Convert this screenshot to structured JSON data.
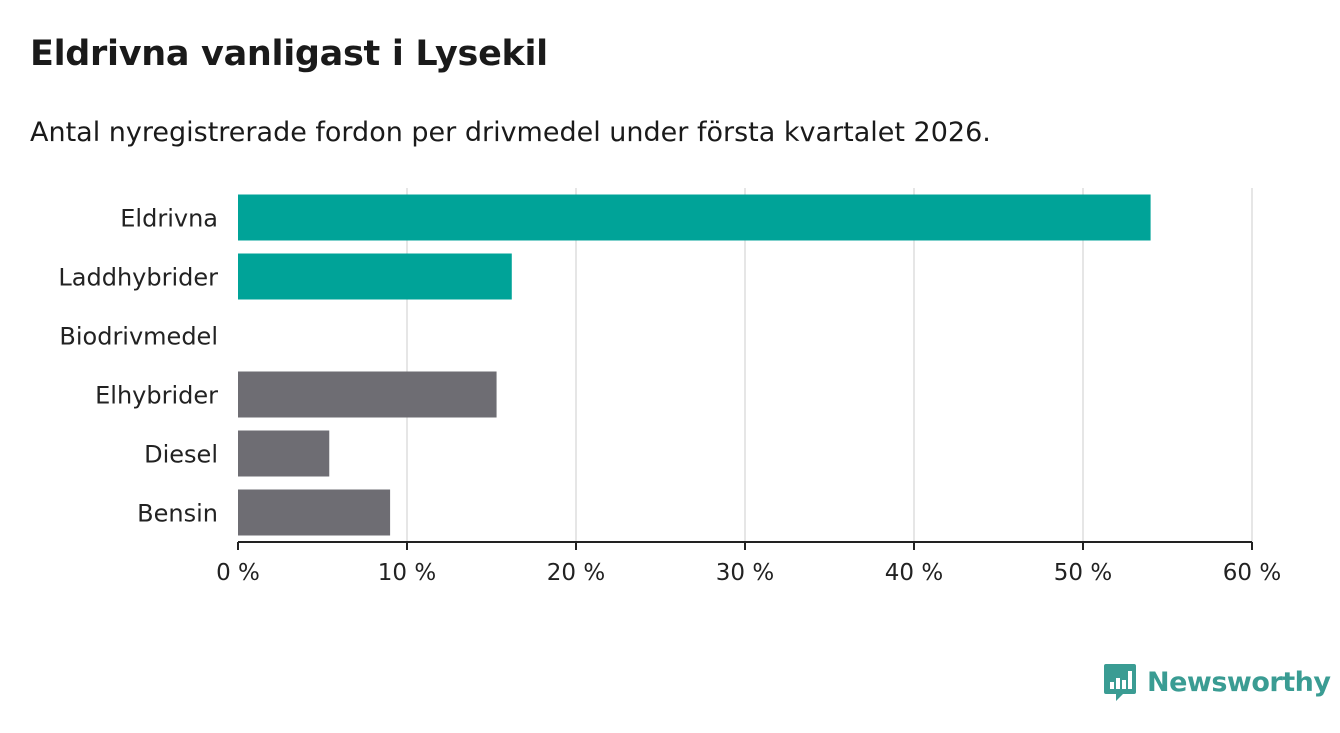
{
  "title": "Eldrivna vanligast i Lysekil",
  "subtitle": "Antal nyregistrerade fordon per drivmedel under första kvartalet 2026.",
  "brand": {
    "name": "Newsworthy",
    "color": "#3a9c93",
    "icon": "newsworthy-logo-icon"
  },
  "colors": {
    "highlight": "#00a398",
    "other": "#6e6d73",
    "grid": "#dddddd",
    "axis": "#222222"
  },
  "chart_data": {
    "type": "bar",
    "orientation": "horizontal",
    "categories": [
      "Eldrivna",
      "Laddhybrider",
      "Biodrivmedel",
      "Elhybrider",
      "Diesel",
      "Bensin"
    ],
    "values": [
      54,
      16.2,
      0,
      15.3,
      5.4,
      9
    ],
    "highlight": [
      true,
      true,
      true,
      false,
      false,
      false
    ],
    "xlim": [
      0,
      60
    ],
    "xticks": [
      0,
      10,
      20,
      30,
      40,
      50,
      60
    ],
    "xtick_labels": [
      "0 %",
      "10 %",
      "20 %",
      "30 %",
      "40 %",
      "50 %",
      "60 %"
    ],
    "xlabel": "",
    "ylabel": "",
    "grid": true
  }
}
